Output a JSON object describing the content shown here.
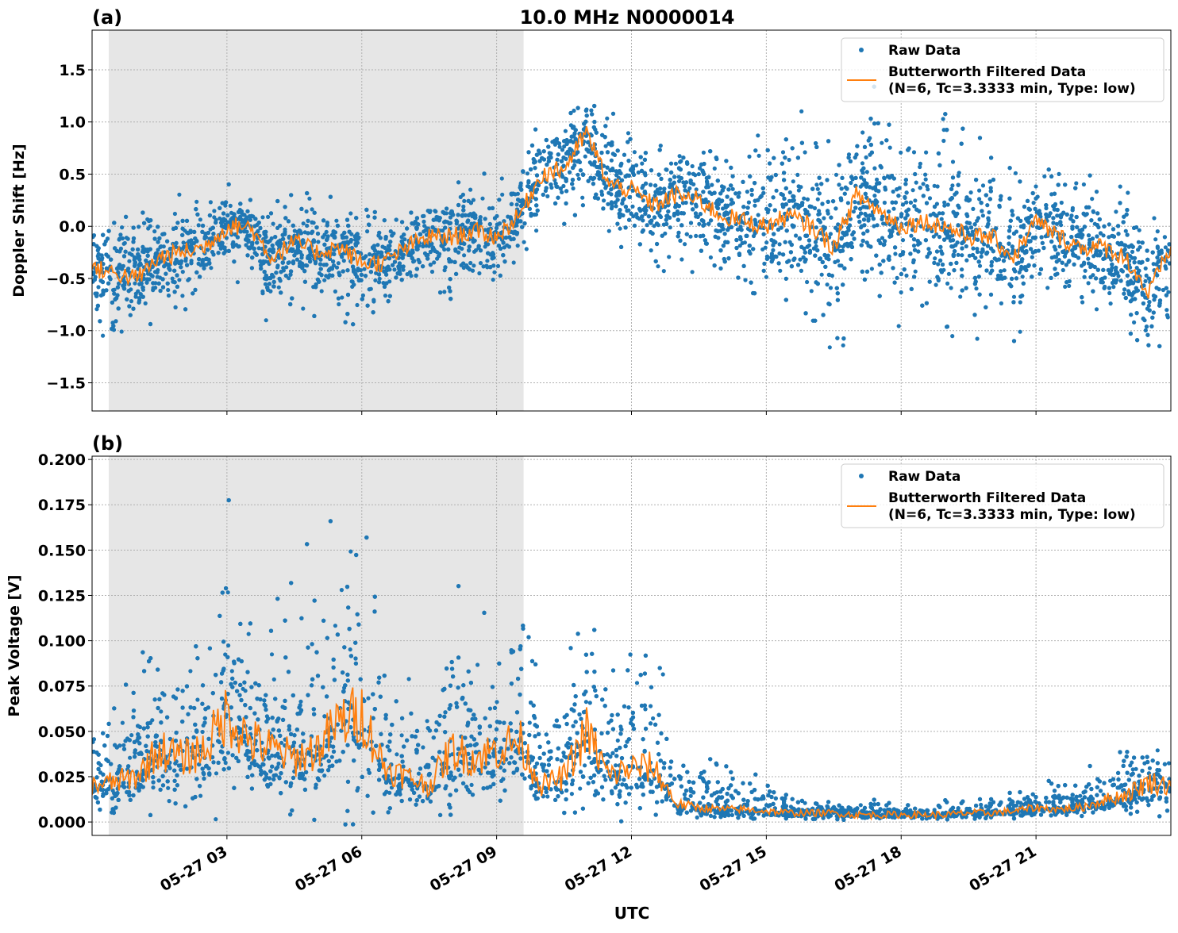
{
  "title": "10.0 MHz N0000014",
  "xlabel": "UTC",
  "colors": {
    "raw": "#1f77b4",
    "filtered": "#ff7f0e",
    "shade": "#e6e6e6",
    "grid": "#b0b0b0"
  },
  "x_ticks": [
    "05-27 03",
    "05-27 06",
    "05-27 09",
    "05-27 12",
    "05-27 15",
    "05-27 18",
    "05-27 21"
  ],
  "x_tick_hours": [
    3,
    6,
    9,
    12,
    15,
    18,
    21
  ],
  "xlim_hours": [
    0,
    24
  ],
  "shaded_interval_hours": [
    0.37,
    9.6
  ],
  "chart_data": [
    {
      "type": "scatter+line",
      "panel_label": "(a)",
      "ylabel": "Doppler Shift [Hz]",
      "ylim": [
        -1.77,
        1.88
      ],
      "y_ticks": [
        -1.5,
        -1.0,
        -0.5,
        0.0,
        0.5,
        1.0,
        1.5
      ],
      "y_tick_labels": [
        "−1.5",
        "−1.0",
        "−0.5",
        "0.0",
        "0.5",
        "1.0",
        "1.5"
      ],
      "grid": true,
      "legend": {
        "position": "top-right",
        "raw": "Raw Data",
        "filtered": "Butterworth Filtered Data",
        "filtered_params": "(N=6, Tc=3.3333 min, Type: low)"
      },
      "x_hours": [
        0,
        0.5,
        1,
        1.5,
        2,
        2.5,
        3,
        3.5,
        4,
        4.5,
        5,
        5.5,
        6,
        6.5,
        7,
        7.5,
        8,
        8.5,
        9,
        9.5,
        10,
        10.5,
        11,
        11.5,
        12,
        12.5,
        13,
        13.5,
        14,
        14.5,
        15,
        15.5,
        16,
        16.5,
        17,
        17.5,
        18,
        18.5,
        19,
        19.5,
        20,
        20.5,
        21,
        21.5,
        22,
        22.5,
        23,
        23.5,
        24
      ],
      "filtered": [
        -0.4,
        -0.45,
        -0.5,
        -0.3,
        -0.25,
        -0.2,
        0.0,
        0.0,
        -0.3,
        -0.15,
        -0.25,
        -0.2,
        -0.35,
        -0.35,
        -0.2,
        -0.1,
        -0.1,
        -0.05,
        -0.1,
        0.1,
        0.5,
        0.55,
        0.9,
        0.4,
        0.35,
        0.2,
        0.3,
        0.25,
        0.1,
        0.05,
        0.0,
        0.1,
        0.0,
        -0.2,
        0.3,
        0.15,
        0.0,
        0.05,
        0.0,
        -0.1,
        -0.1,
        -0.3,
        0.05,
        -0.1,
        -0.2,
        -0.2,
        -0.3,
        -0.65,
        -0.2
      ],
      "raw_lower": [
        -0.85,
        -0.9,
        -0.95,
        -0.7,
        -0.8,
        -0.55,
        -0.35,
        -0.45,
        -0.8,
        -0.6,
        -0.7,
        -0.7,
        -0.8,
        -0.7,
        -0.55,
        -0.5,
        -0.6,
        -0.55,
        -0.55,
        -0.2,
        0.1,
        0.1,
        0.3,
        0.0,
        -0.15,
        -0.3,
        -0.25,
        -0.4,
        -0.5,
        -0.55,
        -0.7,
        -0.7,
        -0.8,
        -1.0,
        -0.6,
        -0.7,
        -0.75,
        -0.7,
        -0.75,
        -0.8,
        -0.8,
        -0.9,
        -0.5,
        -0.6,
        -0.7,
        -0.75,
        -0.85,
        -1.2,
        -0.7
      ],
      "raw_upper": [
        0.1,
        0.0,
        -0.05,
        0.1,
        0.2,
        0.2,
        0.3,
        0.3,
        0.15,
        0.2,
        0.15,
        0.2,
        0.1,
        0.05,
        0.2,
        0.3,
        0.3,
        0.35,
        0.35,
        0.5,
        0.9,
        1.0,
        1.4,
        1.0,
        0.8,
        0.7,
        0.8,
        0.75,
        0.6,
        0.65,
        0.7,
        0.9,
        0.8,
        0.6,
        1.1,
        1.0,
        0.8,
        0.9,
        0.8,
        0.7,
        0.6,
        0.4,
        0.5,
        0.4,
        0.35,
        0.3,
        0.2,
        0.0,
        0.3
      ]
    },
    {
      "type": "scatter+line",
      "panel_label": "(b)",
      "ylabel": "Peak Voltage [V]",
      "ylim": [
        -0.0074,
        0.2018
      ],
      "y_ticks": [
        0.0,
        0.025,
        0.05,
        0.075,
        0.1,
        0.125,
        0.15,
        0.175,
        0.2
      ],
      "y_tick_labels": [
        "0.000",
        "0.025",
        "0.050",
        "0.075",
        "0.100",
        "0.125",
        "0.150",
        "0.175",
        "0.200"
      ],
      "grid": true,
      "legend": {
        "position": "top-right",
        "raw": "Raw Data",
        "filtered": "Butterworth Filtered Data",
        "filtered_params": "(N=6, Tc=3.3333 min, Type: low)"
      },
      "x_hours": [
        0,
        0.5,
        1,
        1.5,
        2,
        2.5,
        3,
        3.5,
        4,
        4.5,
        5,
        5.5,
        6,
        6.5,
        7,
        7.5,
        8,
        8.5,
        9,
        9.5,
        10,
        10.5,
        11,
        11.5,
        12,
        12.5,
        13,
        13.5,
        14,
        14.5,
        15,
        15.5,
        16,
        16.5,
        17,
        17.5,
        18,
        18.5,
        19,
        19.5,
        20,
        20.5,
        21,
        21.5,
        22,
        22.5,
        23,
        23.5,
        24
      ],
      "filtered": [
        0.02,
        0.022,
        0.025,
        0.04,
        0.035,
        0.04,
        0.06,
        0.045,
        0.04,
        0.035,
        0.04,
        0.055,
        0.06,
        0.03,
        0.025,
        0.02,
        0.04,
        0.035,
        0.04,
        0.045,
        0.02,
        0.025,
        0.05,
        0.025,
        0.03,
        0.03,
        0.01,
        0.008,
        0.007,
        0.007,
        0.006,
        0.005,
        0.005,
        0.005,
        0.004,
        0.004,
        0.004,
        0.004,
        0.004,
        0.005,
        0.005,
        0.006,
        0.008,
        0.007,
        0.008,
        0.012,
        0.015,
        0.022,
        0.02
      ],
      "raw_lower": [
        0.008,
        0.008,
        0.01,
        0.012,
        0.01,
        0.012,
        0.015,
        0.012,
        0.012,
        0.01,
        0.012,
        0.015,
        0.015,
        0.008,
        0.008,
        0.006,
        0.01,
        0.008,
        0.01,
        0.012,
        0.008,
        0.008,
        0.012,
        0.006,
        0.006,
        0.006,
        0.003,
        0.002,
        0.002,
        0.002,
        0.002,
        0.002,
        0.002,
        0.002,
        0.002,
        0.002,
        0.002,
        0.002,
        0.002,
        0.002,
        0.002,
        0.003,
        0.003,
        0.003,
        0.003,
        0.005,
        0.006,
        0.008,
        0.008
      ],
      "raw_upper": [
        0.06,
        0.06,
        0.07,
        0.1,
        0.09,
        0.11,
        0.15,
        0.12,
        0.11,
        0.11,
        0.13,
        0.15,
        0.16,
        0.08,
        0.07,
        0.07,
        0.12,
        0.09,
        0.1,
        0.13,
        0.05,
        0.08,
        0.15,
        0.07,
        0.09,
        0.1,
        0.04,
        0.035,
        0.03,
        0.03,
        0.02,
        0.015,
        0.01,
        0.01,
        0.01,
        0.01,
        0.01,
        0.01,
        0.01,
        0.01,
        0.012,
        0.015,
        0.02,
        0.02,
        0.02,
        0.035,
        0.04,
        0.045,
        0.05
      ]
    }
  ]
}
